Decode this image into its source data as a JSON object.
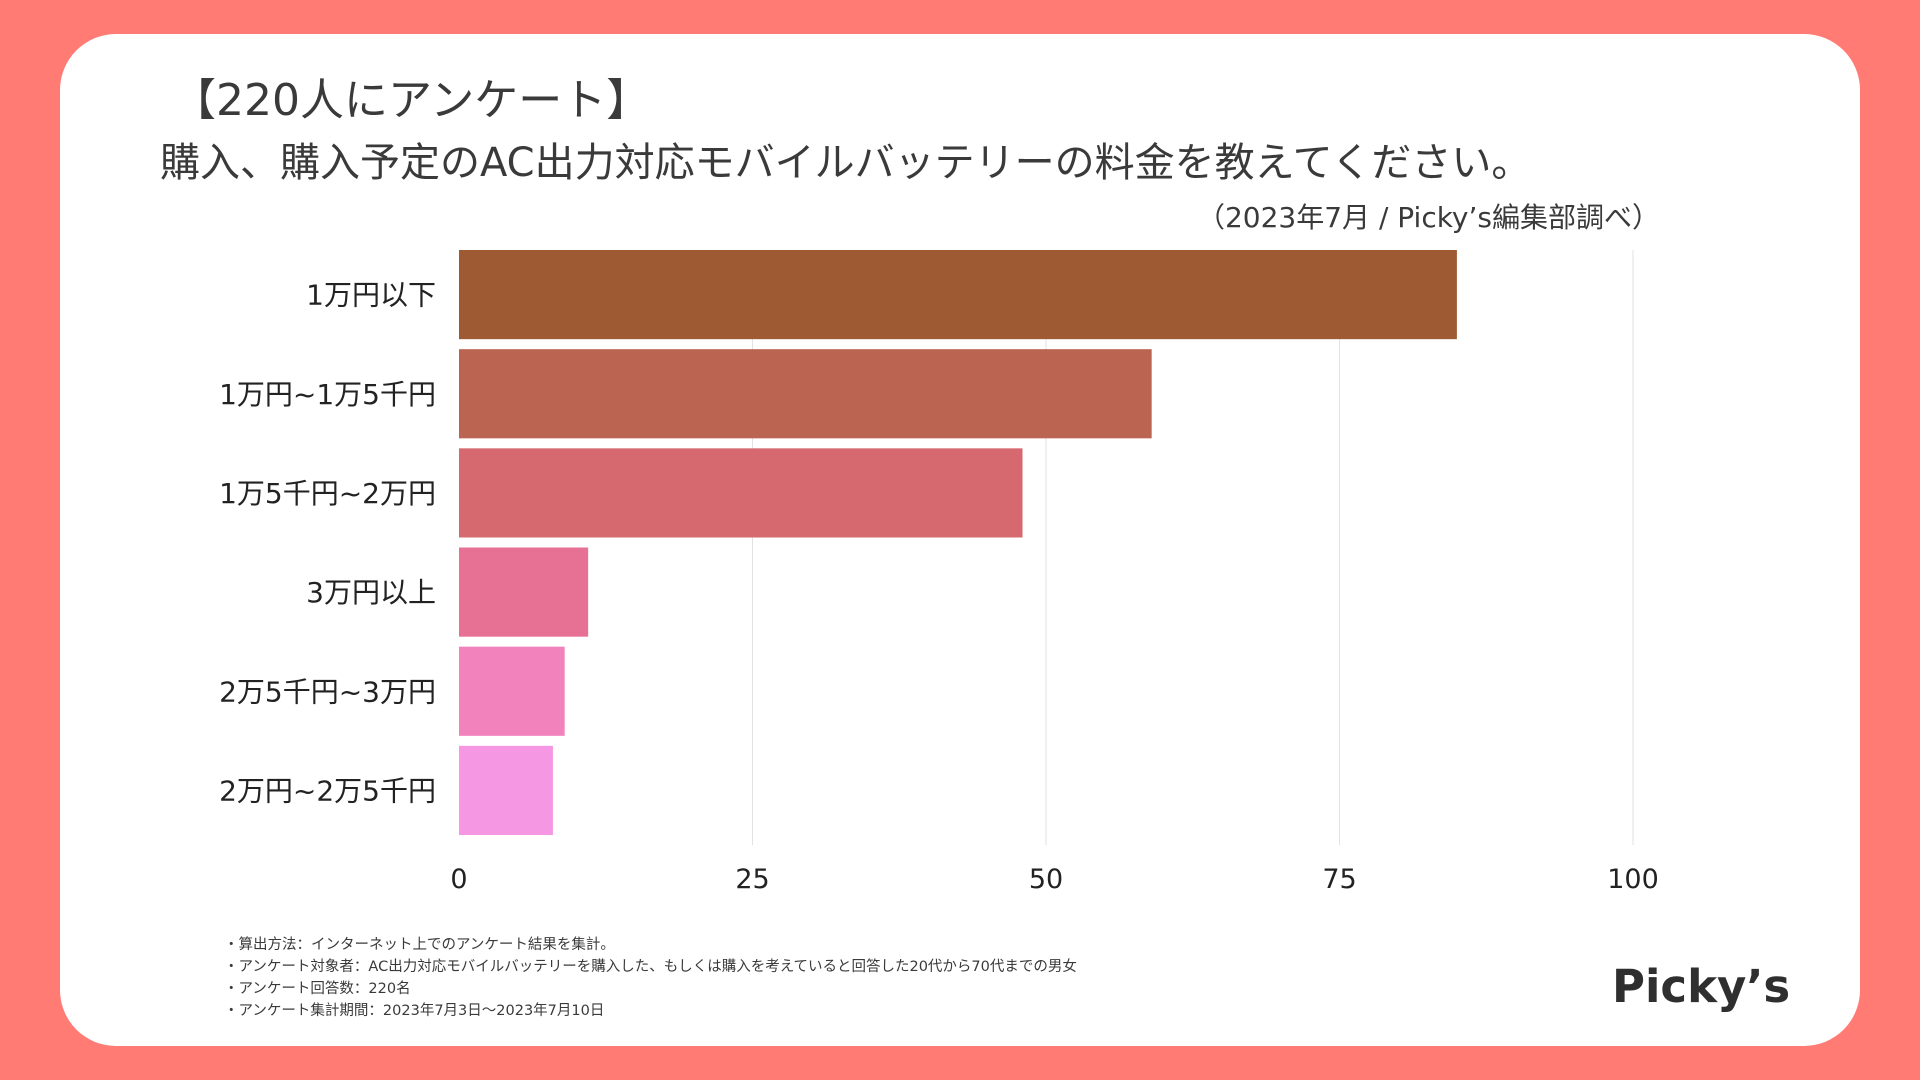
{
  "header": {
    "title_line1": "【220人にアンケート】",
    "title_line2": "購入、購入予定のAC出力対応モバイルバッテリーの料金を教えてください。",
    "source": "（2023年7月 / Picky’s編集部調べ）"
  },
  "colors": {
    "background": "#FF7B73",
    "card": "#FFFFFF",
    "grid": "#E2E2E2"
  },
  "chart_data": {
    "type": "bar",
    "orientation": "horizontal",
    "categories": [
      "1万円以下",
      "1万円~1万5千円",
      "1万5千円~2万円",
      "3万円以上",
      "2万5千円~3万円",
      "2万円~2万5千円"
    ],
    "values": [
      85,
      59,
      48,
      11,
      9,
      8
    ],
    "colors": [
      "#9E5B33",
      "#BC6452",
      "#D6696F",
      "#E77194",
      "#F282BB",
      "#F597E2"
    ],
    "xlim": [
      0,
      100
    ],
    "xticks": [
      0,
      25,
      50,
      75,
      100
    ],
    "xtick_labels": [
      "0",
      "25",
      "50",
      "75",
      "100"
    ],
    "grid": true,
    "title": "購入、購入予定のAC出力対応モバイルバッテリーの料金を教えてください。",
    "xlabel": "",
    "ylabel": ""
  },
  "notes": [
    "・算出方法：インターネット上でのアンケート結果を集計。",
    "・アンケート対象者：AC出力対応モバイルバッテリーを購入した、もしくは購入を考えていると回答した20代から70代までの男女",
    "・アンケート回答数：220名",
    "・アンケート集計期間：2023年7月3日〜2023年7月10日"
  ],
  "logo": {
    "text": "Picky’s"
  }
}
